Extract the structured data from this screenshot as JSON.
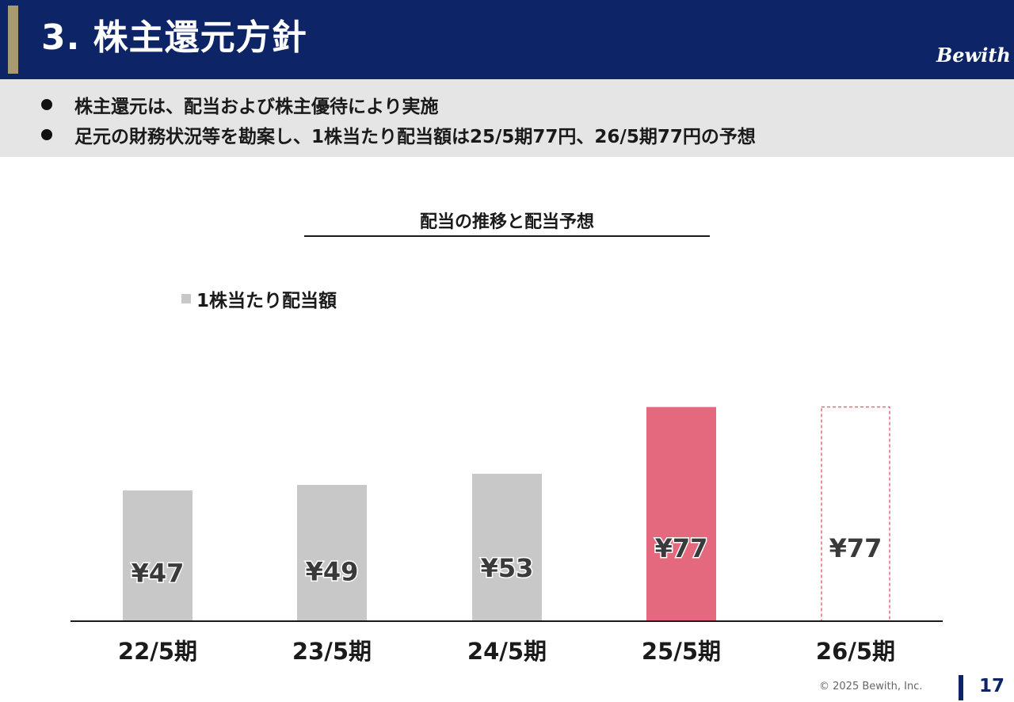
{
  "header": {
    "title": "3. 株主還元方針",
    "logo_text": "Bewith"
  },
  "bullets": [
    "株主還元は、配当および株主優待により実施",
    "足元の財務状況等を勘案し、1株当たり配当額は25/5期77円、26/5期77円の予想"
  ],
  "chart_data": {
    "type": "bar",
    "title": "配当の推移と配当予想",
    "categories": [
      "22/5期",
      "23/5期",
      "24/5期",
      "25/5期",
      "26/5期"
    ],
    "series": [
      {
        "name": "1株当たり配当額",
        "values": [
          47,
          49,
          53,
          77,
          77
        ]
      }
    ],
    "data_labels": [
      "¥47",
      "¥49",
      "¥53",
      "¥77",
      "¥77"
    ],
    "bar_styles": [
      "actual",
      "actual",
      "actual",
      "highlight",
      "forecast"
    ],
    "colors": {
      "actual": "#c8c8c8",
      "highlight": "#e5697e",
      "forecast_border": "#e5697e"
    },
    "legend_position": "top-left",
    "grid": false,
    "ylim": [
      0,
      94
    ]
  },
  "footer": {
    "copyright": "© 2025 Bewith, Inc.",
    "page_number": "17"
  }
}
